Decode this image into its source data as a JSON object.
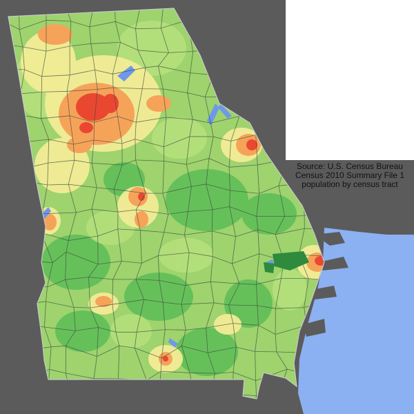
{
  "source_note": {
    "line1": "Source: U.S. Census Bureau",
    "line2": "Census 2010 Summary File 1",
    "line3": "population by census tract"
  },
  "colors": {
    "background": "#5b5b5b",
    "ocean": "#8cb1f2",
    "water": "#6f98e8",
    "low_density": "#66c05a",
    "mid_low_density": "#b5e07c",
    "mid_density": "#f3ec96",
    "high_density": "#f6a35a",
    "highest_density": "#e8382a"
  }
}
